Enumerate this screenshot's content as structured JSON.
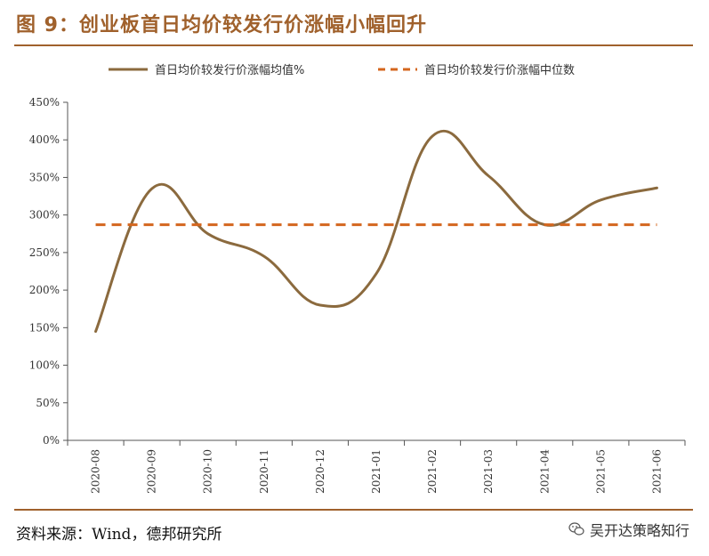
{
  "figure": {
    "title": "图 9：创业板首日均价较发行价涨幅小幅回升",
    "source": "资料来源：Wind，德邦研究所",
    "watermark": "吴开达策略知行",
    "watermark_icon": "wechat-icon"
  },
  "colors": {
    "accent": "#a0612c",
    "mean_line": "#8b6a3e",
    "median_line": "#d4661e"
  },
  "chart_data": {
    "type": "line",
    "categories": [
      "2020-08",
      "2020-09",
      "2020-10",
      "2020-11",
      "2020-12",
      "2021-01",
      "2021-02",
      "2021-03",
      "2021-04",
      "2021-05",
      "2021-06"
    ],
    "series": [
      {
        "name": "首日均价较发行价涨幅均值%",
        "values": [
          145,
          335,
          275,
          245,
          180,
          222,
          405,
          352,
          287,
          320,
          336
        ],
        "style": "solid"
      },
      {
        "name": "首日均价较发行价涨幅中位数",
        "values": [
          287,
          287,
          287,
          287,
          287,
          287,
          287,
          287,
          287,
          287,
          287
        ],
        "style": "dashed"
      }
    ],
    "yticks": [
      "0%",
      "50%",
      "100%",
      "150%",
      "200%",
      "250%",
      "300%",
      "350%",
      "400%",
      "450%"
    ],
    "ylim": [
      0,
      450
    ],
    "title": "",
    "xlabel": "",
    "ylabel": "",
    "grid": false,
    "legend": "top"
  }
}
